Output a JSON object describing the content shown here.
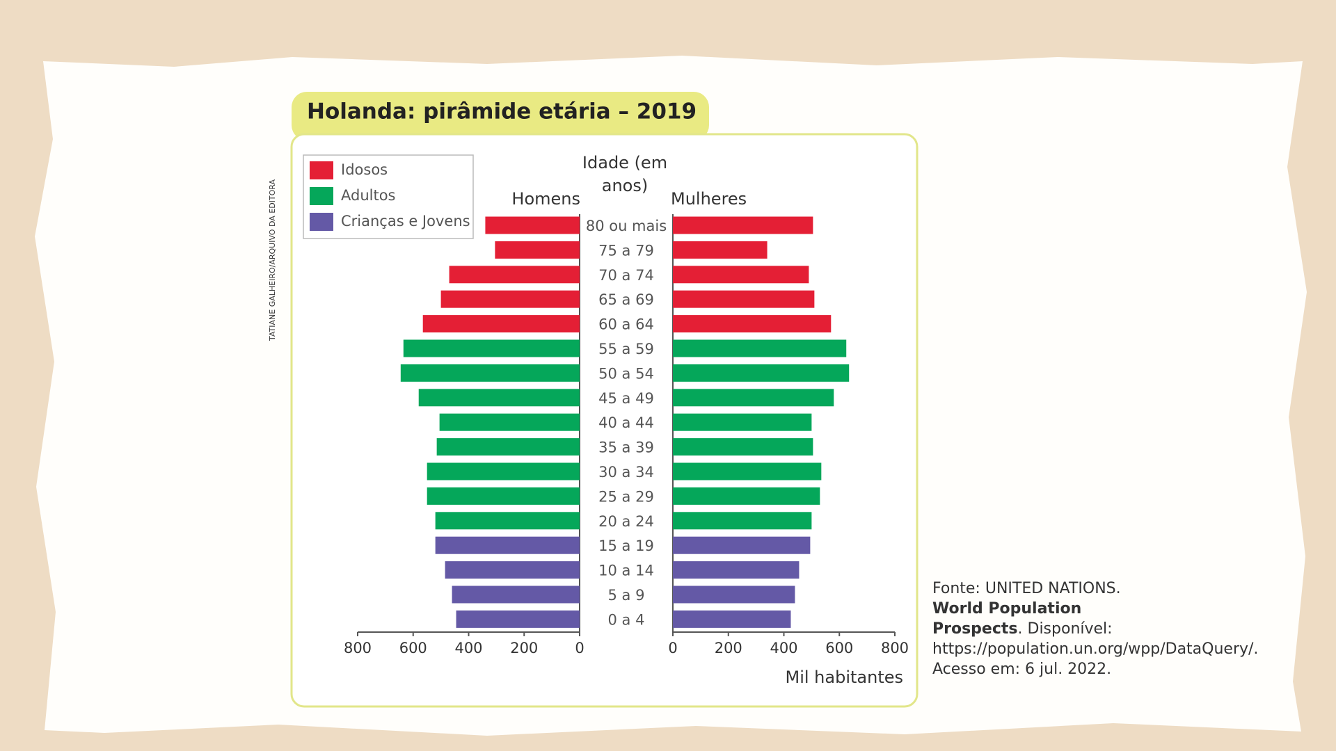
{
  "chart_data": {
    "type": "pyramid",
    "title": "Holanda: pirâmide etária – 2019",
    "y_label": "Idade (em anos)",
    "left_label": "Homens",
    "right_label": "Mulheres",
    "x_label": "Mil habitantes",
    "xlim": [
      0,
      800
    ],
    "xticks": [
      0,
      200,
      400,
      600,
      800
    ],
    "groups": [
      {
        "name": "Idosos",
        "color": "#e41f35",
        "categories": [
          "80 ou mais",
          "75 a 79",
          "70 a 74",
          "65 a 69",
          "60 a 64"
        ],
        "men": [
          340,
          305,
          470,
          500,
          565
        ],
        "women": [
          505,
          340,
          490,
          510,
          570
        ]
      },
      {
        "name": "Adultos",
        "color": "#05a75a",
        "categories": [
          "55 a 59",
          "50 a 54",
          "45 a 49",
          "40 a 44",
          "35 a 39",
          "30 a 34",
          "25 a 29",
          "20 a 24"
        ],
        "men": [
          635,
          645,
          580,
          505,
          515,
          550,
          550,
          520
        ],
        "women": [
          625,
          635,
          580,
          500,
          505,
          535,
          530,
          500
        ]
      },
      {
        "name": "Crianças e Jovens",
        "color": "#6459a6",
        "categories": [
          "15 a 19",
          "10 a 14",
          "5 a 9",
          "0 a 4"
        ],
        "men": [
          520,
          485,
          460,
          445
        ],
        "women": [
          495,
          455,
          440,
          425
        ]
      }
    ],
    "source": {
      "prefix": "Fonte: UNITED NATIONS.",
      "bold": "World Population Prospects",
      "suffix": ". Disponível: https://population.un.org/wpp/DataQuery/. Acesso em: 6 jul. 2022."
    },
    "credit": "TATIANE GALHEIRO/ARQUIVO DA EDITORA"
  }
}
